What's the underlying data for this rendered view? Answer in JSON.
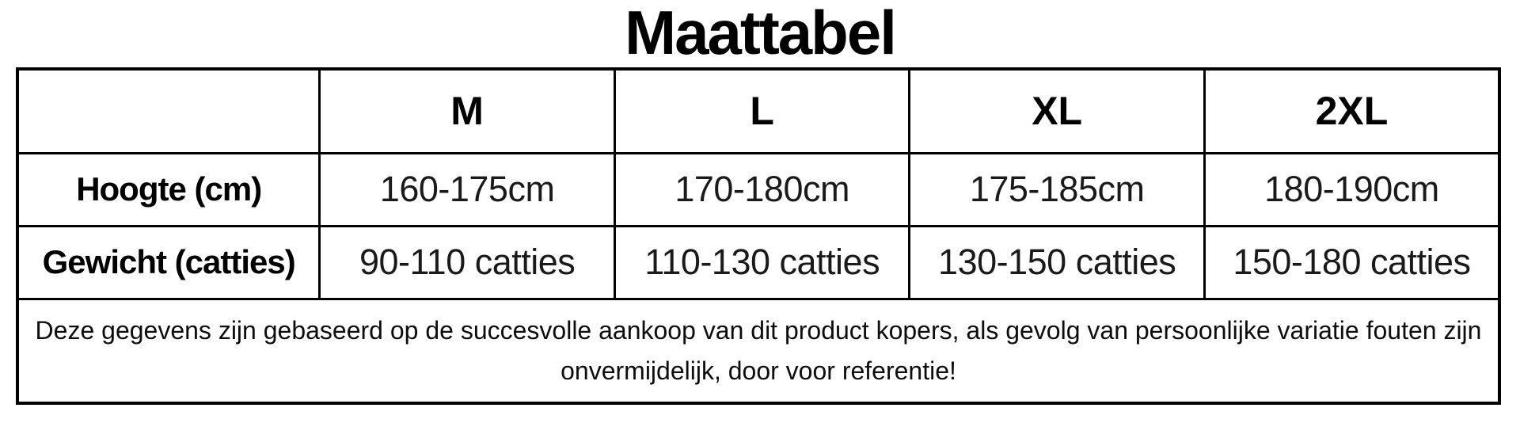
{
  "title": "Maattabel",
  "colors": {
    "background": "#ffffff",
    "border": "#000000",
    "heading_text": "#000000",
    "data_text": "#1a1a1a"
  },
  "chart_data": {
    "type": "table",
    "title": "Maattabel",
    "columns": [
      "",
      "M",
      "L",
      "XL",
      "2XL"
    ],
    "rows": [
      [
        "Hoogte (cm)",
        "160-175cm",
        "170-180cm",
        "175-185cm",
        "180-190cm"
      ],
      [
        "Gewicht (catties)",
        "90-110 catties",
        "110-130 catties",
        "130-150 catties",
        "150-180 catties"
      ]
    ],
    "footnote": "Deze gegevens zijn gebaseerd op de succesvolle aankoop van dit product kopers, als gevolg van persoonlijke variatie fouten zijn onvermijdelijk, door voor referentie!"
  }
}
